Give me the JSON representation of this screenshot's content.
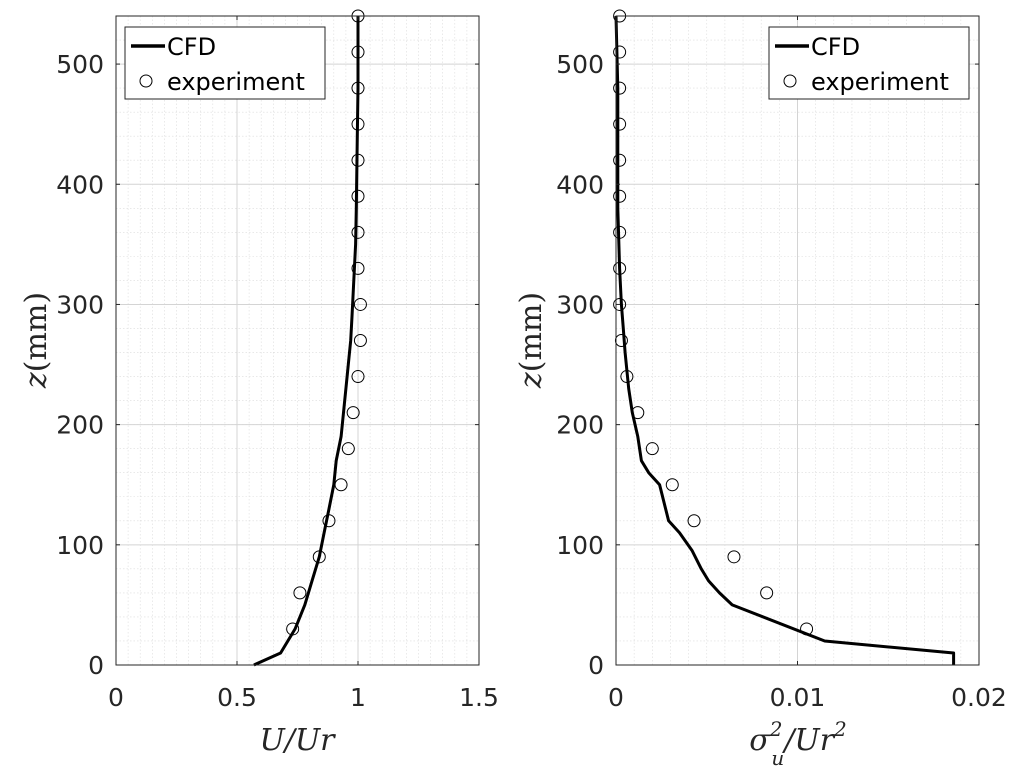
{
  "chart_data": [
    {
      "type": "line",
      "xlabel": "U/Ur",
      "ylabel": {
        "var": "z",
        "unit": "(mm)"
      },
      "xlim": [
        0,
        1.5
      ],
      "ylim": [
        0,
        540
      ],
      "xticks": [
        0,
        0.5,
        1,
        1.5
      ],
      "xtick_labels": [
        "0",
        "0.5",
        "1",
        "1.5"
      ],
      "yticks": [
        0,
        100,
        200,
        300,
        400,
        500
      ],
      "ytick_labels": [
        "0",
        "100",
        "200",
        "300",
        "400",
        "500"
      ],
      "grid": true,
      "minor_grid": true,
      "legend": {
        "position": "top-left",
        "entries": [
          "CFD",
          "experiment"
        ]
      },
      "series": [
        {
          "name": "CFD",
          "style": "line",
          "x": [
            0.57,
            0.68,
            0.74,
            0.78,
            0.81,
            0.84,
            0.86,
            0.88,
            0.9,
            0.91,
            0.93,
            0.94,
            0.95,
            0.96,
            0.97,
            0.975,
            0.98,
            0.985,
            0.99,
            0.993,
            0.995,
            0.997,
            1.0,
            1.0,
            1.0
          ],
          "y": [
            0,
            10,
            30,
            50,
            70,
            90,
            110,
            130,
            150,
            170,
            190,
            210,
            230,
            250,
            270,
            290,
            310,
            330,
            350,
            380,
            410,
            440,
            480,
            510,
            540
          ]
        },
        {
          "name": "experiment",
          "style": "marker",
          "x": [
            0.73,
            0.76,
            0.84,
            0.88,
            0.93,
            0.96,
            0.98,
            1.0,
            1.01,
            1.01,
            1.0,
            1.0,
            1.0,
            1.0,
            1.0,
            1.0,
            1.0,
            1.0
          ],
          "y": [
            30,
            60,
            90,
            120,
            150,
            180,
            210,
            240,
            270,
            300,
            330,
            360,
            390,
            420,
            450,
            480,
            510,
            540
          ]
        }
      ]
    },
    {
      "type": "line",
      "xlabel": {
        "main": "σ",
        "sup": "2",
        "sub": "u",
        "rest": "/Ur",
        "rest_sup": "2"
      },
      "ylabel": {
        "var": "z",
        "unit": "(mm)"
      },
      "xlim": [
        0,
        0.02
      ],
      "ylim": [
        0,
        540
      ],
      "xticks": [
        0,
        0.01,
        0.02
      ],
      "xtick_labels": [
        "0",
        "0.01",
        "0.02"
      ],
      "yticks": [
        0,
        100,
        200,
        300,
        400,
        500
      ],
      "ytick_labels": [
        "0",
        "100",
        "200",
        "300",
        "400",
        "500"
      ],
      "grid": true,
      "minor_grid": true,
      "legend": {
        "position": "top-right",
        "entries": [
          "CFD",
          "experiment"
        ]
      },
      "series": [
        {
          "name": "CFD",
          "style": "line",
          "x": [
            0.0186,
            0.0186,
            0.0115,
            0.0064,
            0.0057,
            0.0051,
            0.0047,
            0.0042,
            0.0035,
            0.0029,
            0.0024,
            0.0018,
            0.0014,
            0.0012,
            0.0009,
            0.0007,
            0.0005,
            0.0004,
            0.0003,
            0.0002,
            0.0001,
            0.0001,
            0.0001,
            0.0
          ],
          "y": [
            0,
            10,
            20,
            50,
            60,
            70,
            80,
            95,
            110,
            120,
            150,
            160,
            170,
            190,
            210,
            230,
            260,
            280,
            300,
            330,
            380,
            430,
            480,
            540
          ]
        },
        {
          "name": "experiment",
          "style": "marker",
          "x": [
            0.0105,
            0.0083,
            0.0065,
            0.0043,
            0.0031,
            0.002,
            0.0012,
            0.0006,
            0.0003,
            0.0002,
            0.0002,
            0.0002,
            0.0002,
            0.0002,
            0.0002,
            0.0002,
            0.0002,
            0.0002
          ],
          "y": [
            30,
            60,
            90,
            120,
            150,
            180,
            210,
            240,
            270,
            300,
            330,
            360,
            390,
            420,
            450,
            480,
            510,
            540
          ]
        }
      ]
    }
  ]
}
